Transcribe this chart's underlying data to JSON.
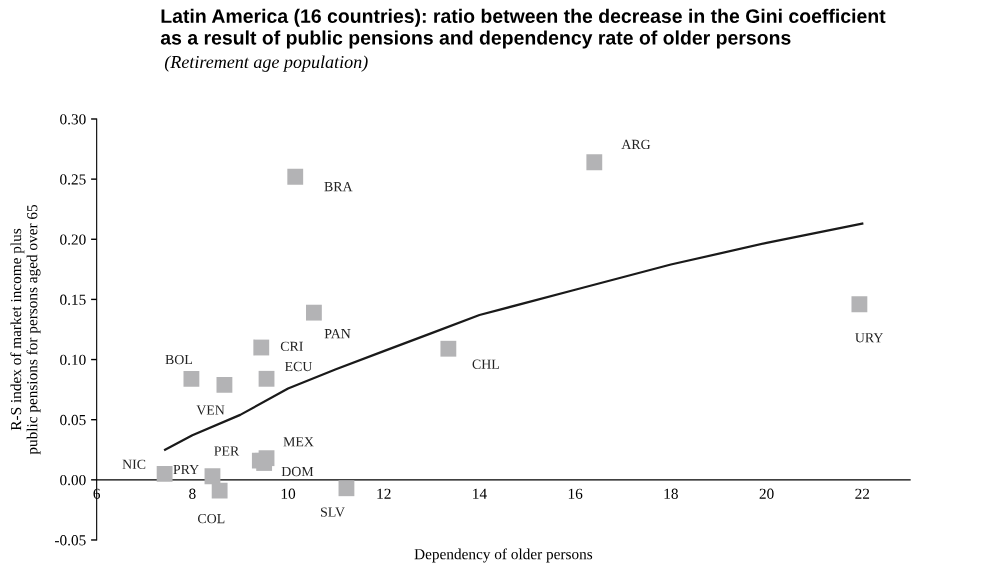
{
  "chart_data": {
    "type": "scatter",
    "title": "Latin America (16 countries): ratio between the decrease in the Gini coefficient\nas a result of public pensions and dependency rate of older persons",
    "subtitle": "(Retirement age population)",
    "xlabel": "Dependency of older persons",
    "ylabel": "R-S index of market income plus\npublic pensions for persons aged over 65",
    "series": [
      {
        "marker": "square",
        "color": "#b3b3b5",
        "x": [
          16.4,
          10.15,
          10.54,
          9.44,
          9.55,
          7.98,
          8.67,
          13.35,
          21.94,
          7.42,
          8.42,
          8.57,
          9.41,
          9.55,
          9.5,
          11.22
        ],
        "values": [
          0.264,
          0.252,
          0.139,
          0.11,
          0.084,
          0.084,
          0.079,
          0.109,
          0.146,
          0.005,
          0.003,
          -0.009,
          0.016,
          0.018,
          0.014,
          -0.007
        ]
      },
      {
        "type": "line",
        "marker": "none",
        "color": "#1a1a1a",
        "x": [
          7.43,
          8,
          9,
          10,
          11,
          12,
          13,
          14,
          16,
          18,
          20,
          22
        ],
        "values": [
          0.025,
          0.037,
          0.054,
          0.076,
          0.092,
          0.107,
          0.122,
          0.137,
          0.158,
          0.179,
          0.197,
          0.213
        ]
      }
    ],
    "annotations": [
      {
        "text": "ARG",
        "x": 16.4,
        "y": 0.264
      },
      {
        "text": "BRA",
        "x": 10.15,
        "y": 0.252
      },
      {
        "text": "PAN",
        "x": 10.54,
        "y": 0.139
      },
      {
        "text": "CRI",
        "x": 9.44,
        "y": 0.11
      },
      {
        "text": "ECU",
        "x": 9.55,
        "y": 0.084
      },
      {
        "text": "BOL",
        "x": 7.98,
        "y": 0.084
      },
      {
        "text": "VEN",
        "x": 8.67,
        "y": 0.079
      },
      {
        "text": "CHL",
        "x": 13.35,
        "y": 0.109
      },
      {
        "text": "URY",
        "x": 21.94,
        "y": 0.146
      },
      {
        "text": "NIC",
        "x": 7.42,
        "y": 0.005
      },
      {
        "text": "PRY",
        "x": 8.42,
        "y": 0.003
      },
      {
        "text": "COL",
        "x": 8.57,
        "y": -0.009
      },
      {
        "text": "PER",
        "x": 9.41,
        "y": 0.016
      },
      {
        "text": "MEX",
        "x": 9.55,
        "y": 0.018
      },
      {
        "text": "DOM",
        "x": 9.5,
        "y": 0.014
      },
      {
        "text": "SLV",
        "x": 11.22,
        "y": -0.007
      }
    ],
    "xlim": [
      6,
      23
    ],
    "xticks": [
      6,
      8,
      10,
      12,
      14,
      16,
      18,
      20,
      22
    ],
    "ylim": [
      -0.05,
      0.3
    ],
    "yticks": [
      {
        "value": -0.05,
        "label": "-0.05"
      },
      {
        "value": 0,
        "label": "0.00"
      },
      {
        "value": 0.05,
        "label": "0.05"
      },
      {
        "value": 0.1,
        "label": "0.10"
      },
      {
        "value": 0.15,
        "label": "0.15"
      },
      {
        "value": 0.2,
        "label": "0.20"
      },
      {
        "value": 0.25,
        "label": "0.25"
      },
      {
        "value": 0.3,
        "label": "0.30"
      }
    ]
  }
}
